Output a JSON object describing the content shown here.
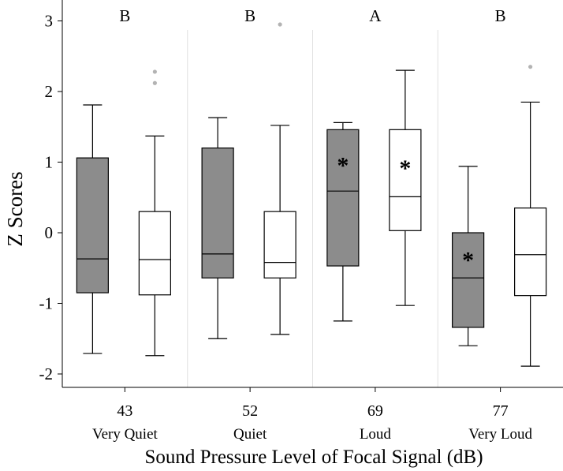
{
  "chart_data": {
    "type": "boxplot",
    "title": "",
    "xlabel": "Sound Pressure Level of Focal Signal (dB)",
    "ylabel": "Z Scores",
    "ylim": [
      -2.25,
      3.3
    ],
    "yticks": [
      -2,
      -1,
      0,
      1,
      2,
      3
    ],
    "ytick_labels": [
      "-2",
      "-1",
      "0",
      "1",
      "2",
      "3"
    ],
    "groups": [
      {
        "level": "43",
        "label": "Very Quiet",
        "letter": "B"
      },
      {
        "level": "52",
        "label": "Quiet",
        "letter": "B"
      },
      {
        "level": "69",
        "label": "Loud",
        "letter": "A"
      },
      {
        "level": "77",
        "label": "Very Loud",
        "letter": "B"
      }
    ],
    "series": [
      {
        "name": "gray",
        "color": "#8c8c8c",
        "boxes": [
          {
            "group": 0,
            "min": -1.71,
            "q1": -0.85,
            "median": -0.37,
            "q3": 1.06,
            "max": 1.81,
            "outliers": [],
            "asterisk": false
          },
          {
            "group": 1,
            "min": -1.5,
            "q1": -0.64,
            "median": -0.3,
            "q3": 1.2,
            "max": 1.63,
            "outliers": [],
            "asterisk": false
          },
          {
            "group": 2,
            "min": -1.25,
            "q1": -0.47,
            "median": 0.59,
            "q3": 1.46,
            "max": 1.56,
            "outliers": [],
            "asterisk": true
          },
          {
            "group": 3,
            "min": -1.6,
            "q1": -1.34,
            "median": -0.64,
            "q3": 0.0,
            "max": 0.94,
            "outliers": [],
            "asterisk": true
          }
        ]
      },
      {
        "name": "white",
        "color": "#ffffff",
        "boxes": [
          {
            "group": 0,
            "min": -1.74,
            "q1": -0.88,
            "median": -0.38,
            "q3": 0.3,
            "max": 1.37,
            "outliers": [
              2.12,
              2.28
            ],
            "asterisk": false
          },
          {
            "group": 1,
            "min": -1.44,
            "q1": -0.64,
            "median": -0.42,
            "q3": 0.3,
            "max": 1.52,
            "outliers": [
              2.95
            ],
            "asterisk": false
          },
          {
            "group": 2,
            "min": -1.03,
            "q1": 0.03,
            "median": 0.51,
            "q3": 1.46,
            "max": 2.3,
            "outliers": [],
            "asterisk": true
          },
          {
            "group": 3,
            "min": -1.89,
            "q1": -0.89,
            "median": -0.31,
            "q3": 0.35,
            "max": 1.85,
            "outliers": [
              2.35
            ],
            "asterisk": false
          }
        ]
      }
    ],
    "annotations": {
      "asterisk_symbol": "*"
    }
  }
}
